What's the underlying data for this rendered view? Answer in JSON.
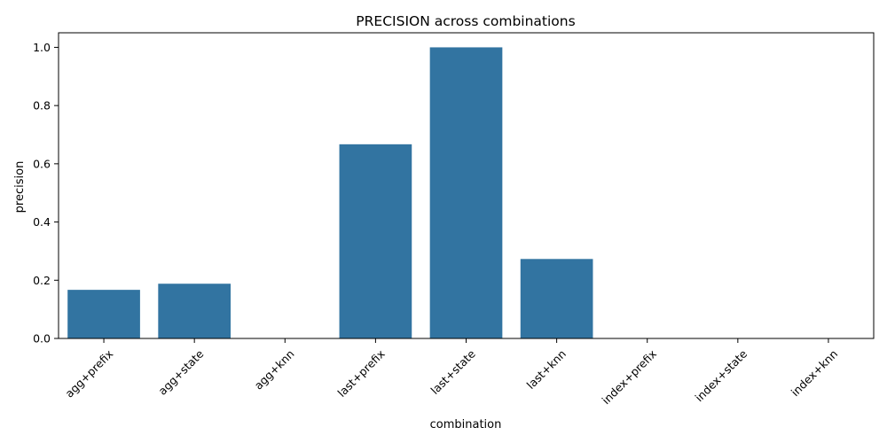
{
  "chart_data": {
    "type": "bar",
    "title": "PRECISION across combinations",
    "xlabel": "combination",
    "ylabel": "precision",
    "categories": [
      "agg+prefix",
      "agg+state",
      "agg+knn",
      "last+prefix",
      "last+state",
      "last+knn",
      "index+prefix",
      "index+state",
      "index+knn"
    ],
    "values": [
      0.167,
      0.188,
      0.0,
      0.667,
      1.0,
      0.273,
      0.0,
      0.0,
      0.0
    ],
    "ylim": [
      0,
      1.05
    ],
    "yticks": [
      "0.0",
      "0.2",
      "0.4",
      "0.6",
      "0.8",
      "1.0"
    ],
    "bar_color": "#3274a1",
    "grid": false,
    "legend": "none"
  }
}
